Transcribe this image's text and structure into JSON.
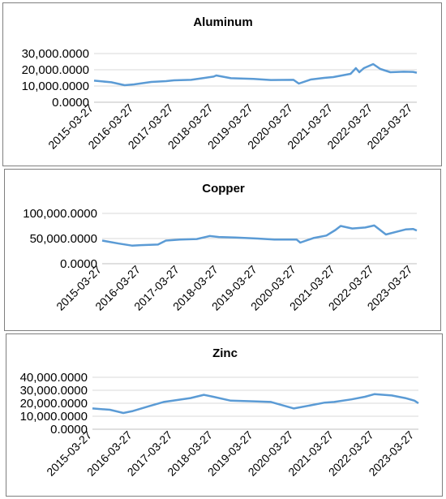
{
  "chart_data": [
    {
      "type": "line",
      "title": "Aluminum",
      "xlabel": "",
      "ylabel": "",
      "ylim": [
        0,
        30000
      ],
      "yticks": [
        "0.0000",
        "10,000.0000",
        "20,000.0000",
        "30,000.0000"
      ],
      "xticks": [
        "2015-03-27",
        "2016-03-27",
        "2017-03-27",
        "2018-03-27",
        "2019-03-27",
        "2020-03-27",
        "2021-03-27",
        "2022-03-27",
        "2023-03-27"
      ],
      "grid": true,
      "line_color": "#5b9bd5",
      "x": [
        "2015-03-27",
        "2015-09-01",
        "2016-01-01",
        "2016-03-27",
        "2016-09-01",
        "2017-01-15",
        "2017-03-27",
        "2017-09-01",
        "2017-12-15",
        "2018-03-27",
        "2018-04-20",
        "2018-09-01",
        "2019-03-27",
        "2019-09-01",
        "2020-03-27",
        "2020-05-15",
        "2020-09-01",
        "2021-01-01",
        "2021-03-27",
        "2021-09-01",
        "2021-10-20",
        "2021-11-20",
        "2022-01-01",
        "2022-03-27",
        "2022-06-01",
        "2022-09-01",
        "2023-01-01",
        "2023-03-27",
        "2023-05-01"
      ],
      "values": [
        13300,
        12300,
        10500,
        11000,
        12500,
        13000,
        13500,
        13800,
        14800,
        15800,
        16500,
        14800,
        14400,
        13700,
        13800,
        11500,
        14000,
        15000,
        15500,
        17500,
        21000,
        18500,
        21000,
        23500,
        20500,
        18500,
        18800,
        18700,
        18200
      ]
    },
    {
      "type": "line",
      "title": "Copper",
      "xlabel": "",
      "ylabel": "",
      "ylim": [
        0,
        100000
      ],
      "yticks": [
        "0.0000",
        "50,000.0000",
        "100,000.0000"
      ],
      "xticks": [
        "2015-03-27",
        "2016-03-27",
        "2017-03-27",
        "2018-03-27",
        "2019-03-27",
        "2020-03-27",
        "2021-03-27",
        "2022-03-27",
        "2023-03-27"
      ],
      "grid": true,
      "line_color": "#5b9bd5",
      "x": [
        "2015-03-27",
        "2015-09-01",
        "2016-01-01",
        "2016-03-27",
        "2016-09-01",
        "2016-11-15",
        "2017-03-27",
        "2017-09-01",
        "2018-01-01",
        "2018-03-27",
        "2018-09-01",
        "2019-03-27",
        "2019-09-01",
        "2020-03-27",
        "2020-05-01",
        "2020-09-01",
        "2021-01-01",
        "2021-03-27",
        "2021-05-15",
        "2021-09-01",
        "2022-01-01",
        "2022-03-27",
        "2022-07-15",
        "2022-11-01",
        "2023-01-15",
        "2023-03-27",
        "2023-05-01"
      ],
      "values": [
        46000,
        40000,
        36000,
        37000,
        38000,
        46000,
        48000,
        49000,
        55000,
        53000,
        52000,
        50000,
        48000,
        48000,
        42000,
        51000,
        56000,
        67000,
        75000,
        70000,
        72000,
        76000,
        58000,
        64000,
        68000,
        69000,
        66000
      ]
    },
    {
      "type": "line",
      "title": "Zinc",
      "xlabel": "",
      "ylabel": "",
      "ylim": [
        0,
        40000
      ],
      "yticks": [
        "0.0000",
        "10,000.0000",
        "20,000.0000",
        "30,000.0000",
        "40,000.0000"
      ],
      "xticks": [
        "2015-03-27",
        "2016-03-27",
        "2017-03-27",
        "2018-03-27",
        "2019-03-27",
        "2020-03-27",
        "2021-03-27",
        "2022-03-27",
        "2023-03-27"
      ],
      "grid": true,
      "line_color": "#5b9bd5",
      "x": [
        "2015-03-27",
        "2015-09-01",
        "2016-01-01",
        "2016-03-27",
        "2016-09-01",
        "2017-01-01",
        "2017-03-27",
        "2017-09-01",
        "2018-01-01",
        "2018-03-27",
        "2018-09-01",
        "2019-03-27",
        "2019-09-01",
        "2020-03-27",
        "2020-09-01",
        "2021-01-01",
        "2021-03-27",
        "2021-09-01",
        "2022-01-01",
        "2022-03-27",
        "2022-09-01",
        "2023-01-01",
        "2023-03-27",
        "2023-05-01"
      ],
      "values": [
        16000,
        15000,
        12500,
        14000,
        18000,
        21000,
        22000,
        24000,
        26500,
        25000,
        22000,
        21500,
        21000,
        16000,
        18500,
        20500,
        21000,
        23000,
        25000,
        27000,
        26000,
        24000,
        22000,
        20000
      ]
    }
  ]
}
